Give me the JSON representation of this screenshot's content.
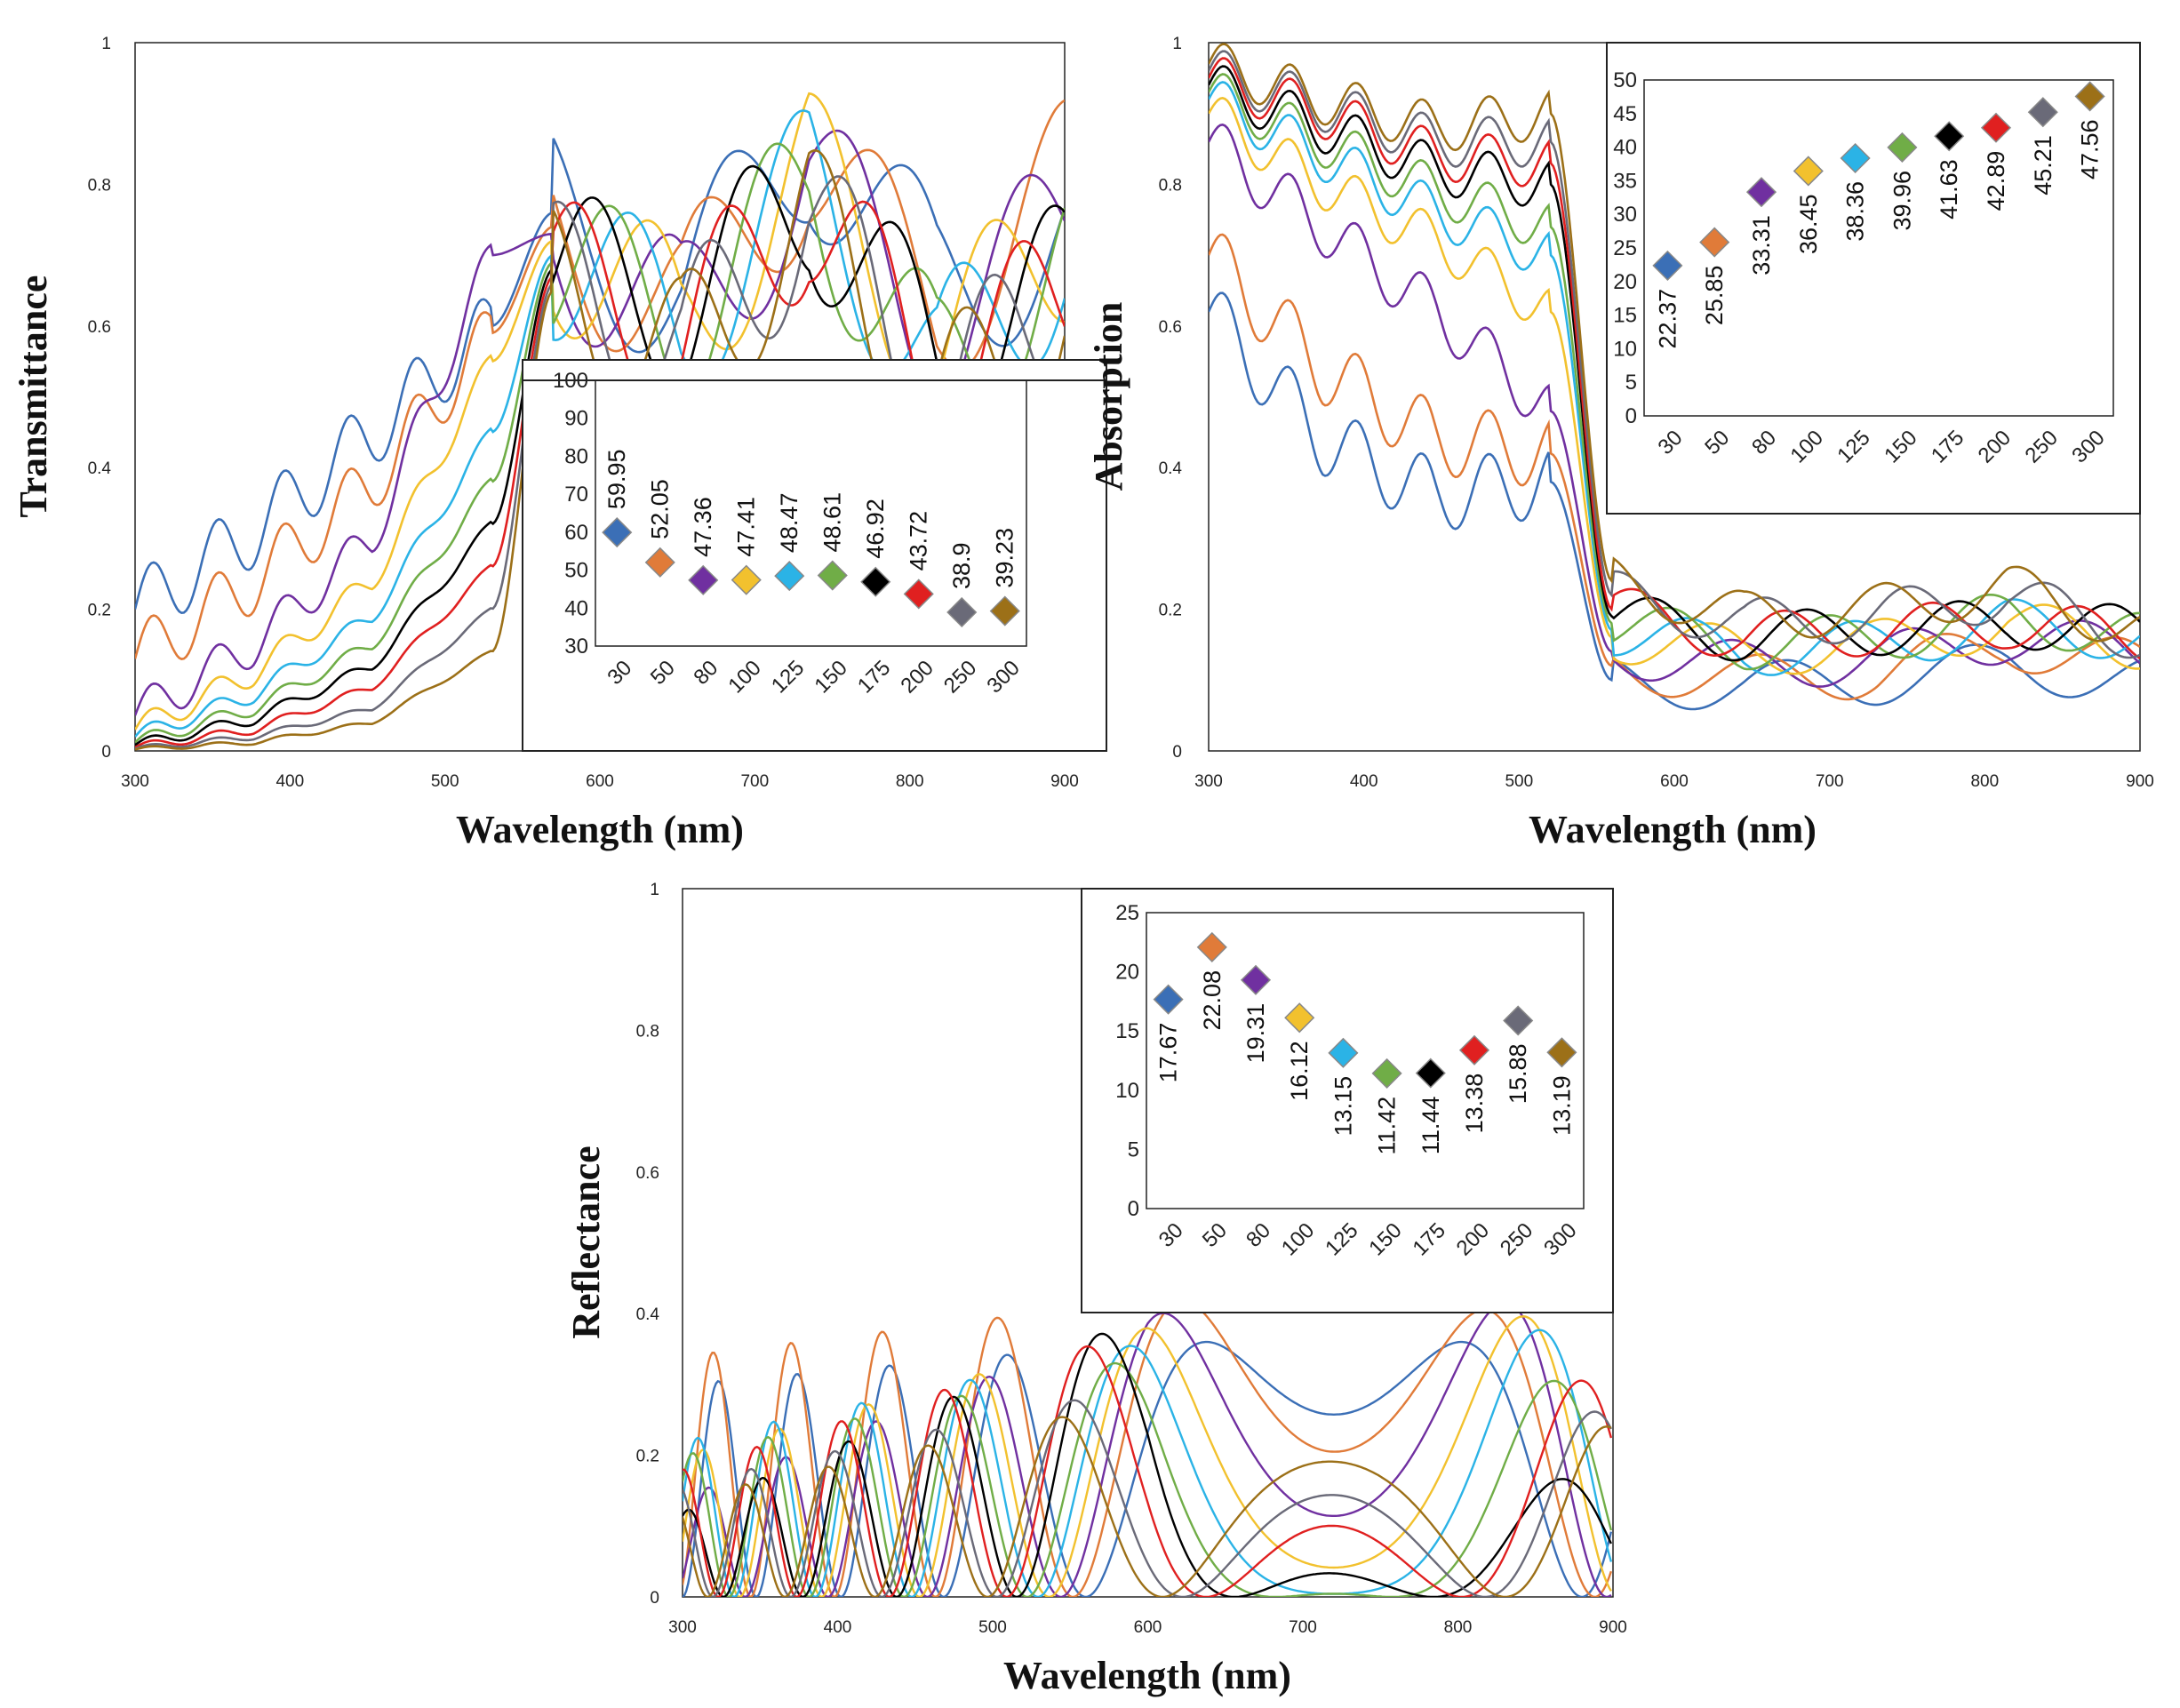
{
  "series_colors": [
    "#3b6fb6",
    "#e07b39",
    "#7030a0",
    "#f2c12e",
    "#2bb3e6",
    "#70ad47",
    "#000000",
    "#e02020",
    "#6a6a78",
    "#9c7018"
  ],
  "chart_data": [
    {
      "id": "transmittance",
      "type": "line",
      "title": "",
      "xlabel": "Wavelength (nm)",
      "ylabel": "Transmittance",
      "xlim": [
        300,
        900
      ],
      "ylim": [
        0,
        1
      ],
      "xticks": [
        "300",
        "400",
        "500",
        "600",
        "700",
        "800",
        "900"
      ],
      "yticks": [
        "0",
        "0.2",
        "0.4",
        "0.6",
        "0.8",
        "1"
      ],
      "series": [
        {
          "name": "30",
          "pre": [
            0.2,
            0.31,
            0.45,
            0.6
          ],
          "post": [
            0.76,
            0.64,
            0.86,
            0.66,
            0.72
          ],
          "f": 0.052,
          "a": 0.05
        },
        {
          "name": "50",
          "pre": [
            0.13,
            0.24,
            0.38,
            0.59
          ],
          "post": [
            0.74,
            0.62,
            0.84,
            0.62,
            0.8
          ],
          "f": 0.054,
          "a": 0.045
        },
        {
          "name": "80",
          "pre": [
            0.05,
            0.15,
            0.3,
            0.7
          ],
          "post": [
            0.73,
            0.6,
            0.82,
            0.58,
            0.74
          ],
          "f": 0.056,
          "a": 0.03
        },
        {
          "name": "100",
          "pre": [
            0.03,
            0.11,
            0.24,
            0.55
          ],
          "post": [
            0.72,
            0.6,
            0.82,
            0.56,
            0.72
          ],
          "f": 0.058,
          "a": 0.018
        },
        {
          "name": "125",
          "pre": [
            0.02,
            0.08,
            0.19,
            0.45
          ],
          "post": [
            0.7,
            0.6,
            0.8,
            0.54,
            0.7
          ],
          "f": 0.06,
          "a": 0.012
        },
        {
          "name": "150",
          "pre": [
            0.012,
            0.06,
            0.15,
            0.38
          ],
          "post": [
            0.69,
            0.6,
            0.79,
            0.53,
            0.68
          ],
          "f": 0.062,
          "a": 0.01
        },
        {
          "name": "175",
          "pre": [
            0.008,
            0.045,
            0.12,
            0.32
          ],
          "post": [
            0.68,
            0.62,
            0.78,
            0.55,
            0.66
          ],
          "f": 0.064,
          "a": 0.008
        },
        {
          "name": "200",
          "pre": [
            0.005,
            0.03,
            0.09,
            0.26
          ],
          "post": [
            0.67,
            0.58,
            0.77,
            0.52,
            0.64
          ],
          "f": 0.066,
          "a": 0.006
        },
        {
          "name": "250",
          "pre": [
            0.003,
            0.02,
            0.06,
            0.2
          ],
          "post": [
            0.66,
            0.56,
            0.76,
            0.5,
            0.62
          ],
          "f": 0.068,
          "a": 0.004
        },
        {
          "name": "300",
          "pre": [
            0.002,
            0.012,
            0.04,
            0.14
          ],
          "post": [
            0.65,
            0.55,
            0.75,
            0.48,
            0.6
          ],
          "f": 0.07,
          "a": 0.003
        }
      ],
      "edge": 530,
      "inset": {
        "yticks": [
          "30",
          "40",
          "50",
          "60",
          "70",
          "80",
          "90",
          "100"
        ],
        "ylim": [
          30,
          100
        ],
        "categories": [
          "30",
          "50",
          "80",
          "100",
          "125",
          "150",
          "175",
          "200",
          "250",
          "300"
        ],
        "values": [
          59.95,
          52.05,
          47.36,
          47.41,
          48.47,
          48.61,
          46.92,
          43.72,
          38.9,
          39.23
        ],
        "labels": [
          "59.95",
          "52.05",
          "47.36",
          "47.41",
          "48.47",
          "48.61",
          "46.92",
          "43.72",
          "38.9",
          "39.23"
        ]
      }
    },
    {
      "id": "absorption",
      "type": "line",
      "title": "",
      "xlabel": "Wavelength (nm)",
      "ylabel": "Absorption",
      "xlim": [
        300,
        900
      ],
      "ylim": [
        0,
        1
      ],
      "xticks": [
        "300",
        "400",
        "500",
        "600",
        "700",
        "800",
        "900"
      ],
      "yticks": [
        "0",
        "0.2",
        "0.4",
        "0.6",
        "0.8",
        "1"
      ],
      "series": [
        {
          "name": "30",
          "pre": [
            0.62,
            0.44,
            0.36,
            0.38
          ],
          "post": [
            0.1,
            0.09,
            0.1,
            0.12,
            0.1
          ],
          "f": 0.052,
          "a": 0.05
        },
        {
          "name": "50",
          "pre": [
            0.7,
            0.54,
            0.44,
            0.42
          ],
          "post": [
            0.12,
            0.1,
            0.11,
            0.15,
            0.12
          ],
          "f": 0.054,
          "a": 0.05
        },
        {
          "name": "80",
          "pre": [
            0.86,
            0.74,
            0.62,
            0.48
          ],
          "post": [
            0.14,
            0.12,
            0.13,
            0.16,
            0.14
          ],
          "f": 0.056,
          "a": 0.04
        },
        {
          "name": "100",
          "pre": [
            0.9,
            0.8,
            0.72,
            0.62
          ],
          "post": [
            0.16,
            0.14,
            0.15,
            0.18,
            0.15
          ],
          "f": 0.058,
          "a": 0.035
        },
        {
          "name": "125",
          "pre": [
            0.92,
            0.84,
            0.76,
            0.7
          ],
          "post": [
            0.17,
            0.14,
            0.15,
            0.18,
            0.16
          ],
          "f": 0.06,
          "a": 0.035
        },
        {
          "name": "150",
          "pre": [
            0.93,
            0.86,
            0.79,
            0.74
          ],
          "post": [
            0.18,
            0.15,
            0.16,
            0.19,
            0.16
          ],
          "f": 0.062,
          "a": 0.035
        },
        {
          "name": "175",
          "pre": [
            0.94,
            0.88,
            0.82,
            0.8
          ],
          "post": [
            0.19,
            0.16,
            0.17,
            0.18,
            0.17
          ],
          "f": 0.064,
          "a": 0.035
        },
        {
          "name": "200",
          "pre": [
            0.95,
            0.9,
            0.84,
            0.83
          ],
          "post": [
            0.2,
            0.16,
            0.17,
            0.18,
            0.16
          ],
          "f": 0.066,
          "a": 0.035
        },
        {
          "name": "250",
          "pre": [
            0.96,
            0.91,
            0.86,
            0.86
          ],
          "post": [
            0.22,
            0.18,
            0.19,
            0.22,
            0.16
          ],
          "f": 0.068,
          "a": 0.035
        },
        {
          "name": "300",
          "pre": [
            0.97,
            0.92,
            0.88,
            0.9
          ],
          "post": [
            0.24,
            0.19,
            0.2,
            0.23,
            0.17
          ],
          "f": 0.07,
          "a": 0.035
        }
      ],
      "edge": 520,
      "inset": {
        "yticks": [
          "0",
          "5",
          "10",
          "15",
          "20",
          "25",
          "30",
          "35",
          "40",
          "45",
          "50"
        ],
        "ylim": [
          0,
          50
        ],
        "categories": [
          "30",
          "50",
          "80",
          "100",
          "125",
          "150",
          "175",
          "200",
          "250",
          "300"
        ],
        "values": [
          22.37,
          25.85,
          33.31,
          36.45,
          38.36,
          39.96,
          41.63,
          42.89,
          45.21,
          47.56
        ],
        "labels": [
          "22.37",
          "25.85",
          "33.31",
          "36.45",
          "38.36",
          "39.96",
          "41.63",
          "42.89",
          "45.21",
          "47.56"
        ]
      }
    },
    {
      "id": "reflectance",
      "type": "line",
      "title": "",
      "xlabel": "Wavelength (nm)",
      "ylabel": "Reflectance",
      "xlim": [
        300,
        900
      ],
      "ylim": [
        0,
        1
      ],
      "xticks": [
        "300",
        "400",
        "500",
        "600",
        "700",
        "800",
        "900"
      ],
      "yticks": [
        "0",
        "0.2",
        "0.4",
        "0.6",
        "0.8",
        "1"
      ],
      "series": [
        {
          "name": "30",
          "amp": [
            0.3,
            0.36,
            0.36
          ],
          "f": 0.06
        },
        {
          "name": "50",
          "amp": [
            0.34,
            0.42,
            0.4
          ],
          "f": 0.062
        },
        {
          "name": "80",
          "amp": [
            0.14,
            0.4,
            0.42
          ],
          "f": 0.064
        },
        {
          "name": "100",
          "amp": [
            0.2,
            0.38,
            0.4
          ],
          "f": 0.066
        },
        {
          "name": "125",
          "amp": [
            0.22,
            0.36,
            0.38
          ],
          "f": 0.068
        },
        {
          "name": "150",
          "amp": [
            0.2,
            0.34,
            0.3
          ],
          "f": 0.07
        },
        {
          "name": "175",
          "amp": [
            0.12,
            0.4,
            0.14
          ],
          "f": 0.072
        },
        {
          "name": "200",
          "amp": [
            0.18,
            0.38,
            0.3
          ],
          "f": 0.074
        },
        {
          "name": "250",
          "amp": [
            0.16,
            0.3,
            0.26
          ],
          "f": 0.076
        },
        {
          "name": "300",
          "amp": [
            0.14,
            0.28,
            0.24
          ],
          "f": 0.078
        }
      ],
      "inset": {
        "yticks": [
          "0",
          "5",
          "10",
          "15",
          "20",
          "25"
        ],
        "ylim": [
          0,
          25
        ],
        "categories": [
          "30",
          "50",
          "80",
          "100",
          "125",
          "150",
          "175",
          "200",
          "250",
          "300"
        ],
        "values": [
          17.67,
          22.08,
          19.31,
          16.12,
          13.15,
          11.42,
          11.44,
          13.38,
          15.88,
          13.19
        ],
        "labels": [
          "17.67",
          "22.08",
          "19.31",
          "16.12",
          "13.15",
          "11.42",
          "11.44",
          "13.38",
          "15.88",
          "13.19"
        ]
      }
    }
  ]
}
